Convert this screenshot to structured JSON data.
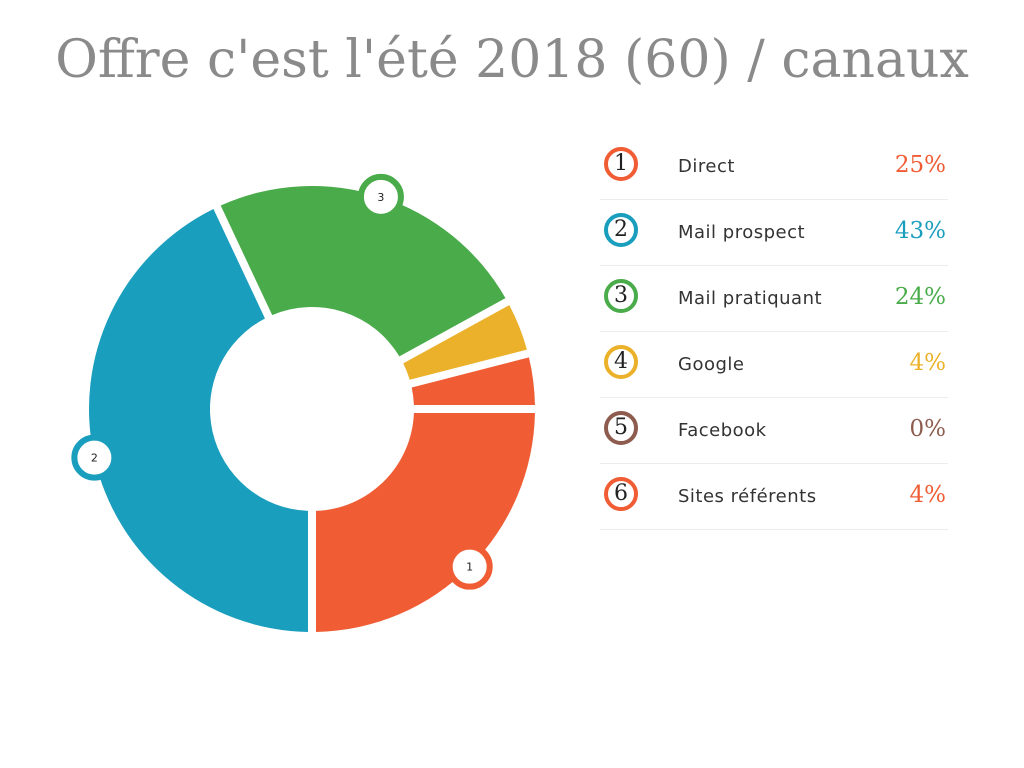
{
  "chart_data": {
    "type": "pie",
    "variant": "donut",
    "title": "Offre c'est l'été 2018 (60) / canaux",
    "slices": [
      {
        "index": "1",
        "label": "Direct",
        "value": 25,
        "value_label": "25%",
        "color": "#f05d35"
      },
      {
        "index": "2",
        "label": "Mail prospect",
        "value": 43,
        "value_label": "43%",
        "color": "#1a9ebd"
      },
      {
        "index": "3",
        "label": "Mail pratiquant",
        "value": 24,
        "value_label": "24%",
        "color": "#4aab4a"
      },
      {
        "index": "4",
        "label": "Google",
        "value": 4,
        "value_label": "4%",
        "color": "#ebb12a"
      },
      {
        "index": "5",
        "label": "Facebook",
        "value": 0,
        "value_label": "0%",
        "color": "#8e5c4f"
      },
      {
        "index": "6",
        "label": "Sites référents",
        "value": 4,
        "value_label": "4%",
        "color": "#f05d35"
      }
    ],
    "markers": [
      "1",
      "2",
      "3"
    ],
    "legend_position": "right"
  }
}
